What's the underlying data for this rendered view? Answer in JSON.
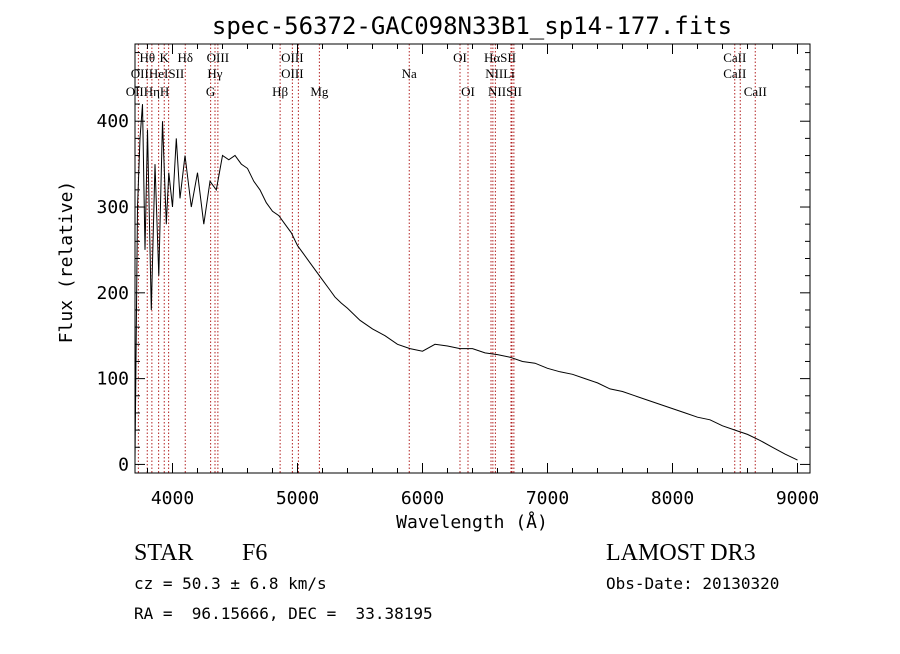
{
  "chart_data": {
    "type": "line",
    "title": "spec-56372-GAC098N33B1_sp14-177.fits",
    "xlabel": "Wavelength (Å)",
    "ylabel": "Flux (relative)",
    "xlim": [
      3700,
      9100
    ],
    "ylim": [
      -10,
      490
    ],
    "xticks": [
      4000,
      5000,
      6000,
      7000,
      8000,
      9000
    ],
    "yticks": [
      0,
      100,
      200,
      300,
      400
    ],
    "grid": false,
    "spectrum": {
      "name": "flux",
      "x": [
        3700,
        3720,
        3740,
        3760,
        3780,
        3800,
        3830,
        3860,
        3890,
        3920,
        3950,
        3970,
        4000,
        4030,
        4060,
        4100,
        4150,
        4200,
        4250,
        4300,
        4350,
        4400,
        4450,
        4500,
        4550,
        4600,
        4650,
        4700,
        4750,
        4800,
        4850,
        4900,
        4950,
        5000,
        5050,
        5100,
        5150,
        5200,
        5250,
        5300,
        5350,
        5400,
        5500,
        5600,
        5700,
        5800,
        5900,
        6000,
        6100,
        6200,
        6300,
        6400,
        6500,
        6600,
        6700,
        6800,
        6900,
        7000,
        7100,
        7200,
        7300,
        7400,
        7500,
        7600,
        7700,
        7800,
        7900,
        8000,
        8100,
        8200,
        8300,
        8400,
        8500,
        8600,
        8700,
        8800,
        8900,
        9000
      ],
      "y": [
        5,
        300,
        380,
        420,
        250,
        390,
        180,
        350,
        220,
        400,
        280,
        340,
        300,
        380,
        310,
        360,
        300,
        340,
        280,
        330,
        320,
        360,
        355,
        360,
        350,
        345,
        330,
        320,
        305,
        295,
        290,
        280,
        270,
        255,
        245,
        235,
        225,
        215,
        205,
        195,
        188,
        182,
        168,
        158,
        150,
        140,
        135,
        132,
        140,
        138,
        135,
        135,
        130,
        128,
        125,
        120,
        118,
        112,
        108,
        105,
        100,
        95,
        88,
        85,
        80,
        75,
        70,
        65,
        60,
        55,
        52,
        45,
        40,
        35,
        28,
        20,
        12,
        5
      ]
    },
    "lines": [
      {
        "name": "OII",
        "wave": 3727
      },
      {
        "name": "Hθ",
        "wave": 3798
      },
      {
        "name": "Hη",
        "wave": 3835
      },
      {
        "name": "Hζ",
        "wave": 3889
      },
      {
        "name": "CaII K",
        "wave": 3934
      },
      {
        "name": "CaII H",
        "wave": 3969
      },
      {
        "name": "Hδ",
        "wave": 4102
      },
      {
        "name": "G",
        "wave": 4305
      },
      {
        "name": "Hγ",
        "wave": 4340
      },
      {
        "name": "OIII",
        "wave": 4363
      },
      {
        "name": "Hβ",
        "wave": 4861
      },
      {
        "name": "OIII",
        "wave": 4959
      },
      {
        "name": "OIII",
        "wave": 5007
      },
      {
        "name": "Mg",
        "wave": 5175
      },
      {
        "name": "Na",
        "wave": 5894
      },
      {
        "name": "OI",
        "wave": 6300
      },
      {
        "name": "OI",
        "wave": 6364
      },
      {
        "name": "NII",
        "wave": 6548
      },
      {
        "name": "Hα",
        "wave": 6563
      },
      {
        "name": "NII",
        "wave": 6583
      },
      {
        "name": "Li",
        "wave": 6708
      },
      {
        "name": "SII",
        "wave": 6716
      },
      {
        "name": "SII",
        "wave": 6731
      },
      {
        "name": "CaII",
        "wave": 8498
      },
      {
        "name": "CaII",
        "wave": 8542
      },
      {
        "name": "CaII",
        "wave": 8662
      }
    ],
    "annotations": [
      {
        "text": "Hθ",
        "row": 1,
        "wave": 3798
      },
      {
        "text": "K",
        "row": 1,
        "wave": 3934
      },
      {
        "text": "Hδ",
        "row": 1,
        "wave": 4102
      },
      {
        "text": "OIII",
        "row": 1,
        "wave": 4363
      },
      {
        "text": "OIII",
        "row": 1,
        "wave": 4959
      },
      {
        "text": "OI",
        "row": 1,
        "wave": 6300
      },
      {
        "text": "HαSII",
        "row": 1,
        "wave": 6620
      },
      {
        "text": "CaII",
        "row": 1,
        "wave": 8498
      },
      {
        "text": "OIIHeISII",
        "row": 2,
        "wave": 3880
      },
      {
        "text": "Hγ",
        "row": 2,
        "wave": 4340
      },
      {
        "text": "OIII",
        "row": 2,
        "wave": 4959
      },
      {
        "text": "Na",
        "row": 2,
        "wave": 5894
      },
      {
        "text": "NIILi",
        "row": 2,
        "wave": 6620
      },
      {
        "text": "CaII",
        "row": 2,
        "wave": 8498
      },
      {
        "text": "OIIHηH",
        "row": 3,
        "wave": 3800
      },
      {
        "text": "G",
        "row": 3,
        "wave": 4305
      },
      {
        "text": "Hβ",
        "row": 3,
        "wave": 4861
      },
      {
        "text": "Mg",
        "row": 3,
        "wave": 5175
      },
      {
        "text": "OI",
        "row": 3,
        "wave": 6364
      },
      {
        "text": "NIISII",
        "row": 3,
        "wave": 6660
      },
      {
        "text": "CaII",
        "row": 3,
        "wave": 8662
      }
    ]
  },
  "info": {
    "object_class": "STAR",
    "subclass": "F6",
    "survey": "LAMOST DR3",
    "cz": "cz = 50.3 ± 6.8 km/s",
    "obs_date": "Obs-Date: 20130320",
    "coords": "RA =  96.15666, DEC =  33.38195"
  },
  "colors": {
    "axis": "#000000",
    "spectrum": "#000000",
    "line_marker": "#b22222",
    "background": "#ffffff"
  }
}
